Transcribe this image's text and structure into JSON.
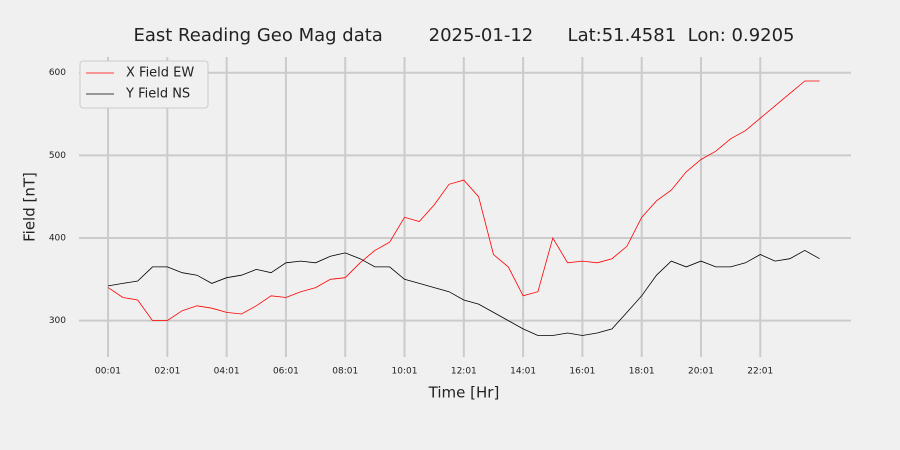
{
  "chart_data": {
    "type": "line",
    "title": "East Reading Geo Mag data        2025-01-12      Lat:51.4581  Lon: 0.9205",
    "x_label": "Time  [Hr]",
    "y_label": "Field  [nT]",
    "x": [
      0,
      0.5,
      1,
      1.5,
      2,
      2.5,
      3,
      3.5,
      4,
      4.5,
      5,
      5.5,
      6,
      6.5,
      7,
      7.5,
      8,
      8.5,
      9,
      9.5,
      10,
      10.5,
      11,
      11.5,
      12,
      12.5,
      13,
      13.5,
      14,
      14.5,
      15,
      15.5,
      16,
      16.5,
      17,
      17.5,
      18,
      18.5,
      19,
      19.5,
      20,
      20.5,
      21,
      21.5,
      22,
      22.5,
      23,
      23.5,
      24
    ],
    "series": [
      {
        "name": "X Field EW",
        "color": "#ff0000",
        "values": [
          340,
          328,
          325,
          300,
          300,
          312,
          318,
          315,
          310,
          308,
          318,
          330,
          328,
          335,
          340,
          350,
          352,
          370,
          385,
          395,
          425,
          420,
          440,
          465,
          470,
          450,
          380,
          365,
          330,
          335,
          400,
          370,
          372,
          370,
          375,
          390,
          425,
          445,
          458,
          480,
          495,
          505,
          520,
          530,
          545,
          560,
          575,
          590,
          590
        ]
      },
      {
        "name": "Y Field NS",
        "color": "#000000",
        "values": [
          342,
          345,
          348,
          365,
          365,
          358,
          355,
          345,
          352,
          355,
          362,
          358,
          370,
          372,
          370,
          378,
          382,
          375,
          365,
          365,
          350,
          345,
          340,
          335,
          325,
          320,
          310,
          300,
          290,
          282,
          282,
          285,
          282,
          285,
          290,
          310,
          330,
          355,
          372,
          365,
          372,
          365,
          365,
          370,
          380,
          372,
          375,
          385,
          375
        ]
      }
    ],
    "xlim": [
      -0.98,
      25.06
    ],
    "ylim": [
      256,
      619
    ],
    "xticks": [
      {
        "value": 0,
        "label": "00:01"
      },
      {
        "value": 2,
        "label": "02:01"
      },
      {
        "value": 4,
        "label": "04:01"
      },
      {
        "value": 6,
        "label": "06:01"
      },
      {
        "value": 8,
        "label": "08:01"
      },
      {
        "value": 10,
        "label": "10:01"
      },
      {
        "value": 12,
        "label": "12:01"
      },
      {
        "value": 14,
        "label": "14:01"
      },
      {
        "value": 16,
        "label": "16:01"
      },
      {
        "value": 18,
        "label": "18:01"
      },
      {
        "value": 20,
        "label": "20:01"
      },
      {
        "value": 22,
        "label": "22:01"
      }
    ],
    "yticks": [
      300,
      400,
      500,
      600
    ],
    "grid": true,
    "legend": "upper left"
  }
}
